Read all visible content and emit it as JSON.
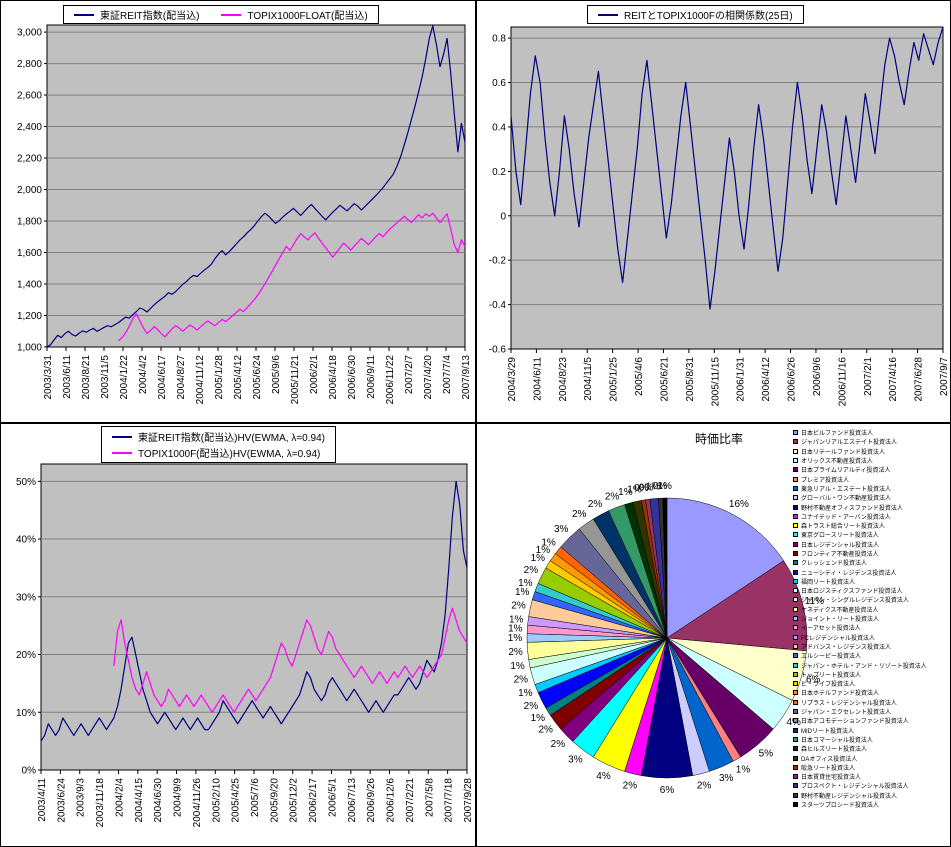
{
  "colors": {
    "plot_bg": "#C0C0C0",
    "grid": "#808080",
    "axis": "#000000",
    "series_navy": "#000080",
    "series_magenta": "#FF00FF"
  },
  "chart_data": [
    {
      "id": "reit_index",
      "type": "line",
      "title": "",
      "ylim": [
        1000,
        3045
      ],
      "yticks": [
        {
          "v": 1000,
          "l": "1,000"
        },
        {
          "v": 1200,
          "l": "1,200"
        },
        {
          "v": 1400,
          "l": "1,400"
        },
        {
          "v": 1600,
          "l": "1,600"
        },
        {
          "v": 1800,
          "l": "1,800"
        },
        {
          "v": 2000,
          "l": "2,000"
        },
        {
          "v": 2200,
          "l": "2,200"
        },
        {
          "v": 2400,
          "l": "2,400"
        },
        {
          "v": 2600,
          "l": "2,600"
        },
        {
          "v": 2800,
          "l": "2,800"
        },
        {
          "v": 3000,
          "l": "3,000"
        }
      ],
      "x_labels": [
        "2003/3/31",
        "2003/6/11",
        "2003/8/21",
        "2003/11/5",
        "2004/1/22",
        "2004/4/2",
        "2004/6/17",
        "2004/8/27",
        "2004/11/12",
        "2005/1/28",
        "2005/4/12",
        "2005/6/24",
        "2005/9/6",
        "2005/11/21",
        "2006/2/1",
        "2006/4/18",
        "2006/6/30",
        "2006/9/11",
        "2006/11/22",
        "2007/2/7",
        "2007/4/20",
        "2007/7/4",
        "2007/9/13"
      ],
      "series": [
        {
          "name": "東証REIT指数(配当込)",
          "color": "#000080",
          "values": [
            1000,
            1015,
            1045,
            1075,
            1060,
            1085,
            1100,
            1080,
            1070,
            1088,
            1102,
            1094,
            1108,
            1118,
            1100,
            1112,
            1125,
            1135,
            1128,
            1142,
            1155,
            1172,
            1190,
            1183,
            1205,
            1225,
            1248,
            1238,
            1222,
            1246,
            1268,
            1288,
            1305,
            1322,
            1345,
            1335,
            1352,
            1375,
            1398,
            1415,
            1438,
            1455,
            1448,
            1468,
            1488,
            1505,
            1525,
            1560,
            1590,
            1612,
            1585,
            1605,
            1630,
            1655,
            1680,
            1700,
            1725,
            1745,
            1770,
            1800,
            1828,
            1850,
            1832,
            1808,
            1785,
            1802,
            1825,
            1845,
            1862,
            1880,
            1858,
            1835,
            1860,
            1885,
            1905,
            1880,
            1855,
            1830,
            1808,
            1832,
            1856,
            1878,
            1900,
            1882,
            1865,
            1888,
            1910,
            1895,
            1870,
            1892,
            1915,
            1938,
            1960,
            1985,
            2010,
            2040,
            2070,
            2100,
            2150,
            2210,
            2285,
            2360,
            2445,
            2530,
            2620,
            2715,
            2830,
            2960,
            3040,
            2920,
            2780,
            2860,
            2960,
            2740,
            2480,
            2240,
            2420,
            2300
          ]
        },
        {
          "name": "TOPIX1000FLOAT(配当込)",
          "color": "#FF00FF",
          "values": [
            null,
            null,
            null,
            null,
            null,
            null,
            null,
            null,
            null,
            null,
            null,
            null,
            null,
            null,
            null,
            null,
            null,
            null,
            null,
            null,
            1040,
            1060,
            1090,
            1130,
            1180,
            1210,
            1165,
            1120,
            1085,
            1105,
            1130,
            1110,
            1085,
            1065,
            1090,
            1115,
            1135,
            1120,
            1100,
            1120,
            1140,
            1125,
            1108,
            1128,
            1148,
            1165,
            1150,
            1135,
            1155,
            1175,
            1160,
            1180,
            1200,
            1220,
            1240,
            1225,
            1250,
            1275,
            1300,
            1330,
            1365,
            1400,
            1440,
            1480,
            1520,
            1560,
            1600,
            1640,
            1612,
            1650,
            1690,
            1720,
            1700,
            1680,
            1705,
            1725,
            1690,
            1660,
            1630,
            1600,
            1570,
            1600,
            1630,
            1660,
            1640,
            1615,
            1640,
            1665,
            1690,
            1670,
            1650,
            1675,
            1700,
            1720,
            1700,
            1725,
            1750,
            1770,
            1790,
            1810,
            1830,
            1810,
            1790,
            1815,
            1840,
            1820,
            1845,
            1830,
            1850,
            1820,
            1790,
            1820,
            1845,
            1750,
            1650,
            1600,
            1680,
            1640
          ]
        }
      ]
    },
    {
      "id": "correlation",
      "type": "line",
      "title": "REITとTOPIX1000Fの相関係数(25日)",
      "ylim": [
        -0.6,
        0.85
      ],
      "yticks": [
        {
          "v": 0.8,
          "l": "0.8"
        },
        {
          "v": 0.6,
          "l": "0.6"
        },
        {
          "v": 0.4,
          "l": "0.4"
        },
        {
          "v": 0.2,
          "l": "0.2"
        },
        {
          "v": 0,
          "l": "0"
        },
        {
          "v": -0.2,
          "l": "-0.2"
        },
        {
          "v": -0.4,
          "l": "-0.4"
        },
        {
          "v": -0.6,
          "l": "-0.6"
        }
      ],
      "x_labels": [
        "2004/3/29",
        "2004/6/11",
        "2004/8/23",
        "2004/11/5",
        "2005/1/25",
        "2005/4/6",
        "2005/6/21",
        "2005/8/31",
        "2005/11/15",
        "2006/1/31",
        "2006/4/12",
        "2006/6/26",
        "2006/9/6",
        "2006/11/16",
        "2007/2/1",
        "2007/4/16",
        "2007/6/28",
        "2007/9/7"
      ],
      "series": [
        {
          "name": "REITとTOPIX1000Fの相関係数(25日)",
          "color": "#000080",
          "values": [
            0.45,
            0.2,
            0.05,
            0.3,
            0.55,
            0.72,
            0.6,
            0.35,
            0.15,
            0,
            0.2,
            0.45,
            0.3,
            0.1,
            -0.05,
            0.15,
            0.35,
            0.5,
            0.65,
            0.45,
            0.25,
            0.05,
            -0.15,
            -0.3,
            -0.1,
            0.1,
            0.3,
            0.55,
            0.7,
            0.5,
            0.3,
            0.1,
            -0.1,
            0.05,
            0.25,
            0.45,
            0.6,
            0.4,
            0.2,
            0,
            -0.2,
            -0.42,
            -0.25,
            -0.05,
            0.15,
            0.35,
            0.2,
            0,
            -0.15,
            0.05,
            0.3,
            0.5,
            0.35,
            0.15,
            -0.05,
            -0.25,
            -0.1,
            0.15,
            0.4,
            0.6,
            0.45,
            0.25,
            0.1,
            0.3,
            0.5,
            0.38,
            0.2,
            0.05,
            0.25,
            0.45,
            0.3,
            0.15,
            0.35,
            0.55,
            0.42,
            0.28,
            0.48,
            0.68,
            0.8,
            0.72,
            0.6,
            0.5,
            0.65,
            0.78,
            0.7,
            0.82,
            0.75,
            0.68,
            0.78,
            0.85
          ]
        }
      ]
    },
    {
      "id": "hv",
      "type": "line",
      "title": "",
      "ylim": [
        0,
        53
      ],
      "yticks": [
        {
          "v": 0,
          "l": "0%"
        },
        {
          "v": 10,
          "l": "10%"
        },
        {
          "v": 20,
          "l": "20%"
        },
        {
          "v": 30,
          "l": "30%"
        },
        {
          "v": 40,
          "l": "40%"
        },
        {
          "v": 50,
          "l": "50%"
        }
      ],
      "x_labels": [
        "2003/4/11",
        "2003/6/24",
        "2003/9/3",
        "2003/11/18",
        "2004/2/4",
        "2004/4/15",
        "2004/6/30",
        "2004/9/9",
        "2004/11/26",
        "2005/2/10",
        "2005/4/25",
        "2005/7/6",
        "2005/9/20",
        "2005/12/2",
        "2006/2/17",
        "2006/5/1",
        "2006/7/13",
        "2006/9/26",
        "2006/12/6",
        "2007/2/21",
        "2007/5/8",
        "2007/7/18",
        "2007/9/28"
      ],
      "series": [
        {
          "name": "東証REIT指数(配当込)HV(EWMA, λ=0.94)",
          "color": "#000080",
          "values": [
            5,
            6,
            8,
            7,
            6,
            7,
            9,
            8,
            7,
            6,
            7,
            8,
            7,
            6,
            7,
            8,
            9,
            8,
            7,
            8,
            9,
            11,
            14,
            18,
            22,
            23,
            20,
            17,
            14,
            12,
            10,
            9,
            8,
            9,
            10,
            9,
            8,
            7,
            8,
            9,
            8,
            7,
            8,
            9,
            8,
            7,
            7,
            8,
            9,
            10,
            12,
            11,
            10,
            9,
            8,
            9,
            10,
            11,
            12,
            11,
            10,
            9,
            10,
            11,
            10,
            9,
            8,
            9,
            10,
            11,
            12,
            13,
            15,
            17,
            16,
            14,
            13,
            12,
            13,
            15,
            16,
            15,
            14,
            13,
            12,
            13,
            14,
            13,
            12,
            11,
            10,
            11,
            12,
            11,
            10,
            11,
            12,
            13,
            13,
            14,
            15,
            16,
            15,
            14,
            15,
            17,
            19,
            18,
            17,
            19,
            22,
            27,
            35,
            44,
            50,
            46,
            38,
            35
          ]
        },
        {
          "name": "TOPIX1000F(配当込)HV(EWMA, λ=0.94)",
          "color": "#FF00FF",
          "values": [
            null,
            null,
            null,
            null,
            null,
            null,
            null,
            null,
            null,
            null,
            null,
            null,
            null,
            null,
            null,
            null,
            null,
            null,
            null,
            null,
            18,
            24,
            26,
            22,
            19,
            16,
            14,
            13,
            15,
            17,
            15,
            13,
            12,
            11,
            12,
            14,
            13,
            12,
            11,
            12,
            13,
            12,
            11,
            12,
            13,
            12,
            11,
            10,
            11,
            12,
            13,
            12,
            11,
            10,
            11,
            12,
            13,
            14,
            13,
            12,
            13,
            14,
            15,
            16,
            18,
            20,
            22,
            21,
            19,
            18,
            20,
            22,
            24,
            26,
            25,
            23,
            21,
            20,
            22,
            24,
            23,
            21,
            20,
            19,
            18,
            17,
            16,
            17,
            18,
            17,
            16,
            15,
            16,
            17,
            16,
            15,
            16,
            17,
            16,
            17,
            18,
            17,
            16,
            17,
            18,
            17,
            16,
            17,
            18,
            19,
            20,
            23,
            26,
            28,
            26,
            24,
            23,
            22
          ]
        }
      ]
    },
    {
      "id": "market_cap",
      "type": "pie",
      "title": "時価比率",
      "labels": [
        "日本ビルファンド投資法人",
        "ジャパンリアルエステイト投資法人",
        "日本リテールファンド投資法人",
        "オリックス不動産投資法人",
        "日本プライムリアルティ投資法人",
        "プレミア投資法人",
        "東急リアル・エステート投資法人",
        "グローバル・ワン不動産投資法人",
        "野村不動産オフィスファンド投資法人",
        "ユナイテッド・アーバン投資法人",
        "森トラスト総合リート投資法人",
        "東京グロースリート投資法人",
        "日本レジデンシャル投資法人",
        "フロンティア不動産投資法人",
        "クレッシェンド投資法人",
        "ニューシティ・レジデンス投資法人",
        "福岡リート投資法人",
        "日本ロジスティクスファンド投資法人",
        "ジャパン・シングルレジデンス投資法人",
        "ケネディクス不動産投資法人",
        "ジョイント・リート投資法人",
        "イーアセット投資法人",
        "FCレジデンシャル投資法人",
        "アドバンス・レジデンス投資法人",
        "エルシーピー投資法人",
        "ジャパン・ホテル・アンド・リゾート投資法人",
        "トップリート投資法人",
        "ビ・ライフ投資法人",
        "日本ホテルファンド投資法人",
        "リプラス・レジデンシャル投資法人",
        "ジャパン・エクセレント投資法人",
        "日本アコモデーションファンド投資法人",
        "MIDリート投資法人",
        "日本コマーシャル投資法人",
        "森ヒルズリート投資法人",
        "DAオフィス投資法人",
        "阪急リート投資法人",
        "日本賃貸住宅投資法人",
        "プロスペクト・レジデンシャル投資法人",
        "野村不動産レジデンシャル投資法人",
        "スターツプロシード投資法人"
      ],
      "values": [
        16,
        11,
        6,
        4,
        5,
        1,
        3,
        2,
        6,
        2,
        4,
        3,
        2,
        2,
        1,
        2,
        1,
        2,
        1,
        2,
        1,
        1,
        1,
        2,
        1,
        1,
        2,
        1,
        1,
        1,
        3,
        2,
        2,
        2,
        1,
        1,
        0.5,
        0.5,
        1,
        0.5,
        0.5
      ],
      "pct_labels": [
        "16%",
        "11%",
        "6%",
        "4%",
        "5%",
        "1%",
        "3%",
        "2%",
        "6%",
        "2%",
        "4%",
        "3%",
        "2%",
        "2%",
        "1%",
        "2%",
        "1%",
        "2%",
        "1%",
        "2%",
        "1%",
        "1%",
        "1%",
        "2%",
        "1%",
        "1%",
        "2%",
        "1%",
        "1%",
        "1%",
        "3%",
        "2%",
        "2%",
        "2%",
        "1%",
        "1%",
        "0%",
        "0%",
        "1%",
        "0%",
        "1%"
      ],
      "palette": [
        "#9999FF",
        "#993366",
        "#FFFFCC",
        "#CCFFFF",
        "#660066",
        "#FF8080",
        "#0066CC",
        "#CCCCFF",
        "#000080",
        "#FF00FF",
        "#FFFF00",
        "#00FFFF",
        "#800080",
        "#800000",
        "#008080",
        "#0000FF",
        "#00CCFF",
        "#CCFFFF",
        "#CCFFCC",
        "#FFFF99",
        "#99CCFF",
        "#FF99CC",
        "#CC99FF",
        "#FFCC99",
        "#3366FF",
        "#33CCCC",
        "#99CC00",
        "#FFCC00",
        "#FF9900",
        "#FF6600",
        "#666699",
        "#969696",
        "#003366",
        "#339966",
        "#003300",
        "#333300",
        "#993300",
        "#993366",
        "#333399",
        "#333333",
        "#000000"
      ]
    }
  ]
}
